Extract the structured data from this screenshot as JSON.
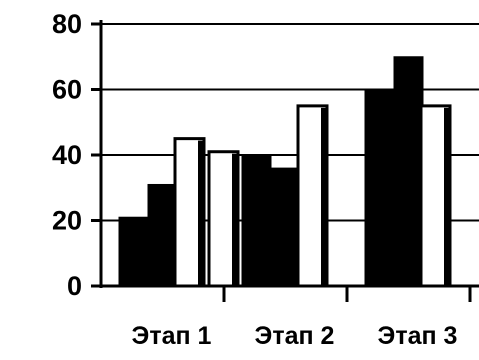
{
  "chart_data": {
    "type": "bar",
    "title": "",
    "xlabel": "",
    "ylabel": "",
    "categories": [
      "Этап 1",
      "Этап 2",
      "Этап 3"
    ],
    "ylim": [
      0,
      80
    ],
    "yticks": [
      "0",
      "20",
      "40",
      "60",
      "80"
    ],
    "grid": true,
    "series": [
      {
        "values": [
          21,
          40,
          60
        ],
        "color": "#000000"
      },
      {
        "values": [
          31,
          36,
          70
        ],
        "color": "#000000"
      },
      {
        "values": [
          45,
          55,
          55
        ],
        "color": "#ffffff"
      },
      {
        "values": [
          41,
          0,
          0
        ],
        "color": "#ffffff"
      }
    ]
  }
}
